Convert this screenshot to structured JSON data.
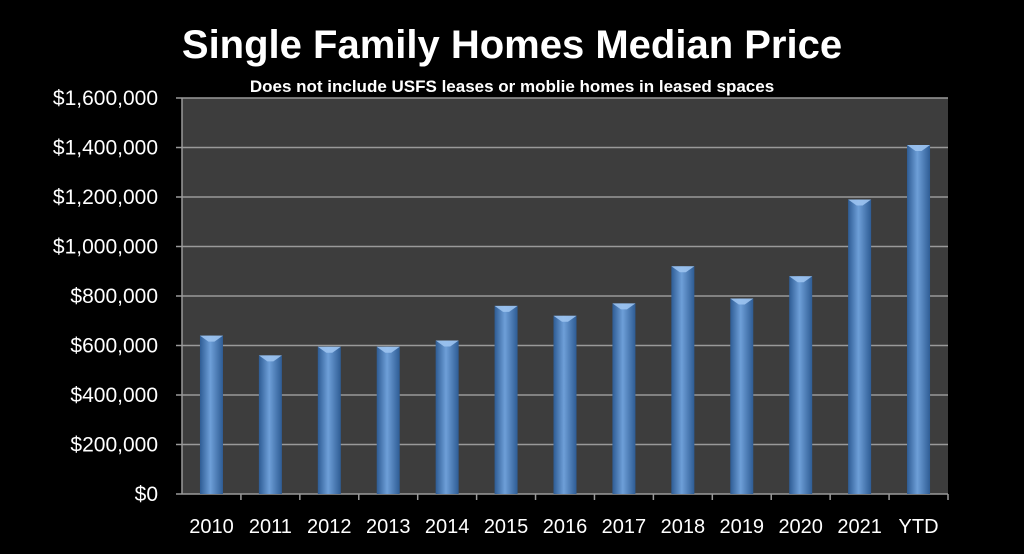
{
  "chart_data": {
    "type": "bar",
    "title": "Single Family Homes Median Price",
    "subtitle": "Does not include USFS leases or moblie homes in leased spaces",
    "xlabel": "",
    "ylabel": "",
    "categories": [
      "2010",
      "2011",
      "2012",
      "2013",
      "2014",
      "2015",
      "2016",
      "2017",
      "2018",
      "2019",
      "2020",
      "2021",
      "YTD"
    ],
    "values": [
      640000,
      560000,
      595000,
      595000,
      620000,
      760000,
      720000,
      770000,
      920000,
      790000,
      880000,
      1190000,
      1410000
    ],
    "ylim": [
      0,
      1600000
    ],
    "yticks": [
      0,
      200000,
      400000,
      600000,
      800000,
      1000000,
      1200000,
      1400000,
      1600000
    ],
    "ytick_labels": [
      "$0",
      "$200,000",
      "$400,000",
      "$600,000",
      "$800,000",
      "$1,000,000",
      "$1,200,000",
      "$1,400,000",
      "$1,600,000"
    ],
    "grid": true,
    "legend": "none",
    "colors": {
      "page_background": "#000000",
      "plot_background": "#3d3d3d",
      "bar": "#4f81bd",
      "bar_light": "#9cc3ef",
      "bar_dark": "#2e5c94",
      "gridline": "#9a9a9a",
      "text": "#ffffff"
    }
  }
}
